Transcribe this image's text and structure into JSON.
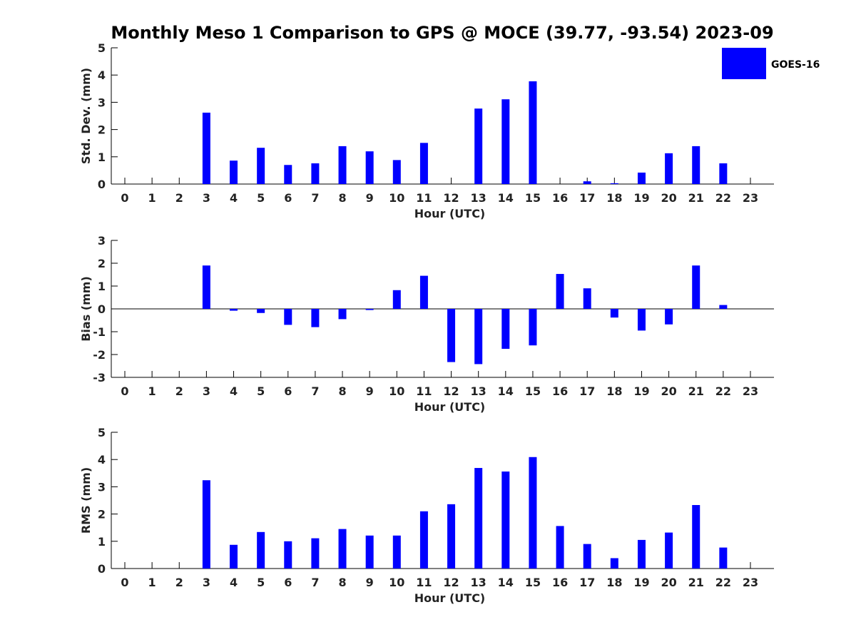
{
  "title": "Monthly Meso 1 Comparison to GPS @ MOCE (39.77, -93.54) 2023-09",
  "chart_data": [
    {
      "type": "bar",
      "id": "stddev",
      "ylabel": "Std. Dev. (mm)",
      "xlabel": "Hour (UTC)",
      "ylim": [
        0,
        5
      ],
      "yticks": [
        0,
        1,
        2,
        3,
        4,
        5
      ],
      "categories": [
        "0",
        "1",
        "2",
        "3",
        "4",
        "5",
        "6",
        "7",
        "8",
        "9",
        "10",
        "11",
        "12",
        "13",
        "14",
        "15",
        "16",
        "17",
        "18",
        "19",
        "20",
        "21",
        "22",
        "23"
      ],
      "series": [
        {
          "name": "GOES-16",
          "values": [
            null,
            null,
            null,
            2.62,
            0.86,
            1.33,
            0.7,
            0.76,
            1.39,
            1.2,
            0.88,
            1.51,
            null,
            2.77,
            3.11,
            3.77,
            null,
            0.1,
            0.03,
            0.42,
            1.13,
            1.39,
            0.76,
            null
          ]
        }
      ]
    },
    {
      "type": "bar",
      "id": "bias",
      "ylabel": "Bias (mm)",
      "xlabel": "Hour (UTC)",
      "ylim": [
        -3,
        3
      ],
      "yticks": [
        -3,
        -2,
        -1,
        0,
        1,
        2,
        3
      ],
      "zero_line": true,
      "categories": [
        "0",
        "1",
        "2",
        "3",
        "4",
        "5",
        "6",
        "7",
        "8",
        "9",
        "10",
        "11",
        "12",
        "13",
        "14",
        "15",
        "16",
        "17",
        "18",
        "19",
        "20",
        "21",
        "22",
        "23"
      ],
      "series": [
        {
          "name": "GOES-16",
          "values": [
            null,
            null,
            null,
            1.9,
            -0.08,
            -0.18,
            -0.7,
            -0.8,
            -0.45,
            -0.05,
            0.82,
            1.45,
            -2.33,
            -2.42,
            -1.75,
            -1.6,
            1.53,
            0.9,
            -0.38,
            -0.95,
            -0.68,
            1.9,
            0.17,
            null
          ]
        }
      ]
    },
    {
      "type": "bar",
      "id": "rms",
      "ylabel": "RMS (mm)",
      "xlabel": "Hour (UTC)",
      "ylim": [
        0,
        5
      ],
      "yticks": [
        0,
        1,
        2,
        3,
        4,
        5
      ],
      "categories": [
        "0",
        "1",
        "2",
        "3",
        "4",
        "5",
        "6",
        "7",
        "8",
        "9",
        "10",
        "11",
        "12",
        "13",
        "14",
        "15",
        "16",
        "17",
        "18",
        "19",
        "20",
        "21",
        "22",
        "23"
      ],
      "series": [
        {
          "name": "GOES-16",
          "values": [
            null,
            null,
            null,
            3.24,
            0.87,
            1.34,
            1.0,
            1.11,
            1.45,
            1.21,
            1.21,
            2.1,
            2.36,
            3.69,
            3.56,
            4.09,
            1.56,
            0.9,
            0.38,
            1.05,
            1.32,
            2.33,
            0.77,
            null
          ]
        }
      ]
    }
  ],
  "legend": {
    "label": "GOES-16",
    "placement": "top-right",
    "color": "#0000ff"
  },
  "colors": {
    "bar": "#0000ff",
    "axis": "#000000",
    "text": "#222222"
  }
}
